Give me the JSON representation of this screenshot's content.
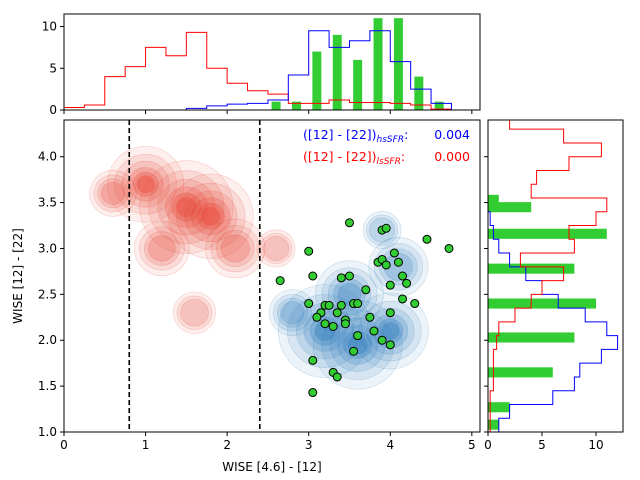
{
  "chart_data": {
    "type": "scatter",
    "main": {
      "xlabel": "WISE [4.6] - [12]",
      "ylabel": "WISE [12] - [22]",
      "xlim": [
        0,
        5.1
      ],
      "ylim": [
        1.0,
        4.4
      ],
      "xticks": [
        0,
        1,
        2,
        3,
        4,
        5
      ],
      "yticks": [
        1.0,
        1.5,
        2.0,
        2.5,
        3.0,
        3.5,
        4.0
      ],
      "vlines": [
        0.8,
        2.4
      ],
      "annotations": [
        {
          "text": "([12] - [22])",
          "sub": "hsSFR",
          "sep": ":",
          "value": "0.004",
          "color": "#0000ff"
        },
        {
          "text": "([12] - [22])",
          "sub": "lsSFR",
          "sep": ":",
          "value": "0.000",
          "color": "#ff0000"
        }
      ],
      "density_regions": [
        {
          "name": "lsSFR",
          "color": "#e8402f",
          "peaks": [
            [
              1.5,
              3.45,
              1.0
            ],
            [
              1.8,
              3.35,
              0.9
            ],
            [
              1.0,
              3.7,
              0.8
            ],
            [
              2.1,
              3.0,
              0.6
            ],
            [
              1.2,
              3.0,
              0.55
            ],
            [
              0.6,
              3.6,
              0.45
            ],
            [
              1.6,
              2.3,
              0.4
            ],
            [
              2.6,
              3.0,
              0.35
            ]
          ]
        },
        {
          "name": "hsSFR",
          "color": "#2c7bbd",
          "peaks": [
            [
              3.2,
              2.1,
              1.0
            ],
            [
              3.6,
              1.95,
              0.95
            ],
            [
              4.0,
              2.1,
              0.8
            ],
            [
              3.5,
              2.5,
              0.7
            ],
            [
              4.1,
              2.8,
              0.6
            ],
            [
              2.8,
              2.3,
              0.45
            ],
            [
              3.9,
              3.2,
              0.35
            ]
          ]
        }
      ],
      "points": {
        "name": "sample",
        "color": "#32cd32",
        "x": [
          2.65,
          3.0,
          3.05,
          3.5,
          3.9,
          3.95,
          4.05,
          4.45,
          4.72,
          3.4,
          3.5,
          3.55,
          3.7,
          3.85,
          3.9,
          3.95,
          4.0,
          4.1,
          4.15,
          4.2,
          3.0,
          3.15,
          3.2,
          3.25,
          3.35,
          3.4,
          3.45,
          3.6,
          3.75,
          3.8,
          4.0,
          4.15,
          4.3,
          3.1,
          3.2,
          3.3,
          3.45,
          3.6,
          3.9,
          4.0,
          3.05,
          3.3,
          3.35,
          3.55,
          3.05
        ],
        "y": [
          2.65,
          2.97,
          2.7,
          3.28,
          3.2,
          3.22,
          2.95,
          3.1,
          3.0,
          2.68,
          2.7,
          2.4,
          2.55,
          2.85,
          2.88,
          2.82,
          2.6,
          2.85,
          2.7,
          2.62,
          2.4,
          2.3,
          2.38,
          2.38,
          2.3,
          2.38,
          2.22,
          2.4,
          2.25,
          2.1,
          2.3,
          2.45,
          2.4,
          2.25,
          2.18,
          2.15,
          2.18,
          2.05,
          2.0,
          1.95,
          1.78,
          1.65,
          1.6,
          1.88,
          1.43
        ]
      }
    },
    "top_histogram": {
      "ylim": [
        0,
        11.5
      ],
      "yticks": [
        0,
        5,
        10
      ],
      "edges": [
        0.0,
        0.25,
        0.5,
        0.75,
        1.0,
        1.25,
        1.5,
        1.75,
        2.0,
        2.25,
        2.5,
        2.75,
        3.0,
        3.25,
        3.5,
        3.75,
        4.0,
        4.25,
        4.5,
        4.75,
        5.0
      ],
      "series": [
        {
          "name": "lsSFR",
          "color": "#ff0000",
          "style": "step",
          "values": [
            0.3,
            0.6,
            4.0,
            5.2,
            7.5,
            6.5,
            9.3,
            5.0,
            3.2,
            2.3,
            1.9,
            0.8,
            0.8,
            1.2,
            0.9,
            0.9,
            0.8,
            0.6,
            0.1,
            0.0
          ]
        },
        {
          "name": "hsSFR",
          "color": "#0000ff",
          "style": "step",
          "values": [
            0.0,
            0.0,
            0.0,
            0.0,
            0.0,
            0.0,
            0.2,
            0.5,
            0.7,
            0.8,
            1.2,
            4.2,
            9.5,
            7.5,
            8.3,
            9.5,
            5.8,
            2.5,
            0.8,
            0.0
          ]
        }
      ],
      "bars": {
        "name": "sample",
        "color": "#32cd32",
        "centers": [
          2.6,
          2.85,
          3.1,
          3.35,
          3.6,
          3.85,
          4.1,
          4.35,
          4.6
        ],
        "values": [
          1,
          1,
          7,
          9,
          6,
          11,
          11,
          4,
          1
        ]
      }
    },
    "right_histogram": {
      "xlim": [
        0,
        12.5
      ],
      "xticks": [
        0,
        5,
        10
      ],
      "edges": [
        1.0,
        1.15,
        1.3,
        1.45,
        1.6,
        1.75,
        1.9,
        2.05,
        2.2,
        2.35,
        2.5,
        2.65,
        2.8,
        2.95,
        3.1,
        3.25,
        3.4,
        3.55,
        3.7,
        3.85,
        4.0,
        4.15,
        4.3,
        4.45
      ],
      "series": [
        {
          "name": "hsSFR",
          "color": "#0000ff",
          "style": "step",
          "values": [
            1.0,
            2.0,
            6.0,
            8.0,
            8.5,
            10.5,
            12.0,
            11.0,
            9.0,
            6.5,
            5.0,
            3.5,
            2.0,
            1.0,
            0.5,
            0.2,
            0.0,
            0.0,
            0.0,
            0.0,
            0.0,
            0.0,
            0.0
          ]
        },
        {
          "name": "lsSFR",
          "color": "#ff0000",
          "style": "step",
          "values": [
            0.2,
            0.2,
            0.2,
            0.5,
            0.5,
            0.5,
            0.8,
            1.0,
            2.5,
            4.0,
            5.0,
            7.0,
            3.0,
            8.0,
            7.5,
            10.0,
            11.0,
            4.0,
            4.5,
            7.5,
            10.5,
            7.0,
            2.0
          ]
        }
      ],
      "bars": {
        "name": "sample",
        "color": "#32cd32",
        "centers": [
          1.08,
          1.27,
          1.65,
          2.03,
          2.4,
          2.78,
          3.16,
          3.45,
          3.53
        ],
        "values": [
          1,
          2,
          6,
          8,
          10,
          8,
          11,
          4,
          1
        ]
      }
    }
  }
}
